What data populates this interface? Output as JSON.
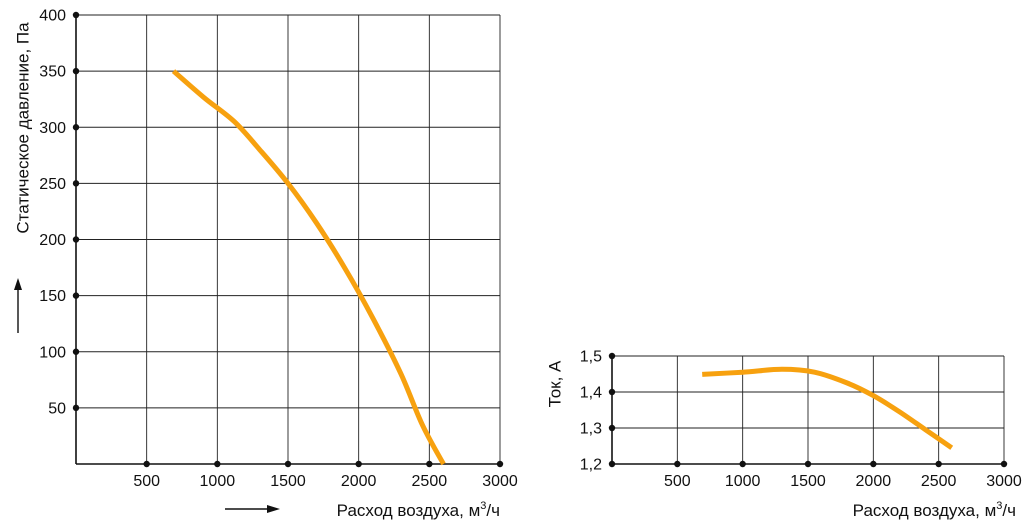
{
  "colors": {
    "curve": "#F7A10F",
    "grid": "#222222",
    "text": "#111111"
  },
  "chart_data": [
    {
      "type": "line",
      "title": "",
      "ylabel": "Статическое давление, Па",
      "xlabel": {
        "base": "Расход воздуха, м",
        "sup": "3",
        "tail": "/ч"
      },
      "xlim": [
        0,
        3000
      ],
      "ylim": [
        0,
        400
      ],
      "x_ticks": [
        500,
        1000,
        1500,
        2000,
        2500,
        3000
      ],
      "x_tick_labels": [
        "500",
        "1000",
        "1500",
        "2000",
        "2500",
        "3000"
      ],
      "y_ticks": [
        50,
        100,
        150,
        200,
        250,
        300,
        350,
        400
      ],
      "y_tick_labels": [
        "50",
        "100",
        "150",
        "200",
        "250",
        "300",
        "350",
        "400"
      ],
      "grid": true,
      "series": [
        {
          "x": [
            690,
            900,
            1120,
            1300,
            1500,
            1700,
            1900,
            2100,
            2300,
            2450,
            2600
          ],
          "y": [
            350,
            327,
            305,
            280,
            250,
            215,
            175,
            130,
            80,
            35,
            0
          ]
        }
      ]
    },
    {
      "type": "line",
      "title": "",
      "ylabel": "Ток, А",
      "xlabel": {
        "base": "Расход воздуха, м",
        "sup": "3",
        "tail": "/ч"
      },
      "xlim": [
        0,
        3000
      ],
      "ylim": [
        1.2,
        1.5
      ],
      "x_ticks": [
        500,
        1000,
        1500,
        2000,
        2500,
        3000
      ],
      "x_tick_labels": [
        "500",
        "1000",
        "1500",
        "2000",
        "2500",
        "3000"
      ],
      "y_ticks": [
        1.2,
        1.3,
        1.4,
        1.5
      ],
      "y_tick_labels": [
        "1,2",
        "1,3",
        "1,4",
        "1,5"
      ],
      "grid": true,
      "series": [
        {
          "x": [
            690,
            1000,
            1300,
            1550,
            1800,
            2000,
            2200,
            2400,
            2600
          ],
          "y": [
            1.449,
            1.455,
            1.463,
            1.455,
            1.425,
            1.39,
            1.345,
            1.295,
            1.245
          ]
        }
      ]
    }
  ]
}
